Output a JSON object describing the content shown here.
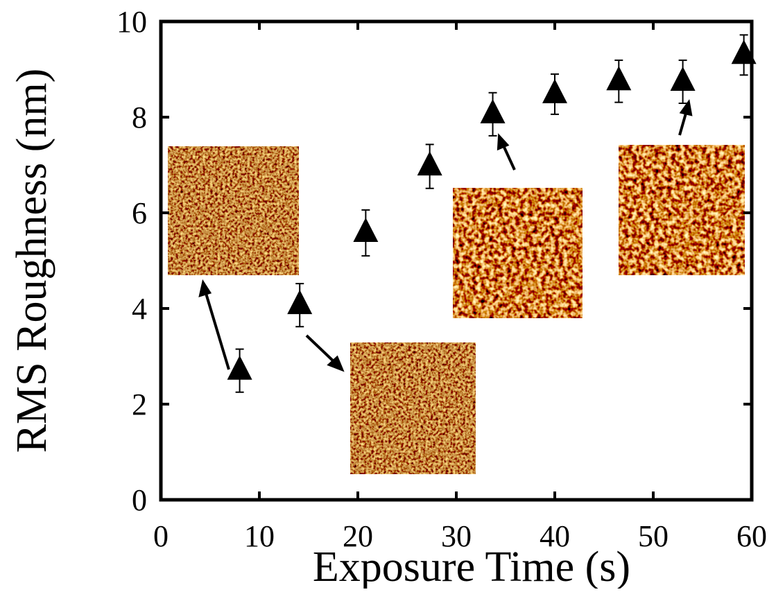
{
  "chart_data": {
    "type": "scatter",
    "x_label": "Exposure Time (s)",
    "y_label": "RMS Roughness (nm)",
    "series": [
      {
        "x": [
          8,
          14.1,
          20.8,
          27.3,
          33.7,
          40.0,
          46.5,
          53.0,
          59.2
        ],
        "values": [
          2.7,
          4.07,
          5.58,
          6.97,
          8.06,
          8.48,
          8.75,
          8.74,
          9.3
        ],
        "errors": [
          0.45,
          0.45,
          0.48,
          0.46,
          0.45,
          0.42,
          0.44,
          0.45,
          0.42
        ],
        "color": "#000000",
        "marker": "triangle"
      }
    ],
    "xlim": [
      0,
      60
    ],
    "xticks": [
      0,
      10,
      20,
      30,
      40,
      50,
      60
    ],
    "ylim": [
      0,
      10
    ],
    "yticks": [
      0,
      2,
      4,
      6,
      8,
      10
    ],
    "grid": false
  }
}
